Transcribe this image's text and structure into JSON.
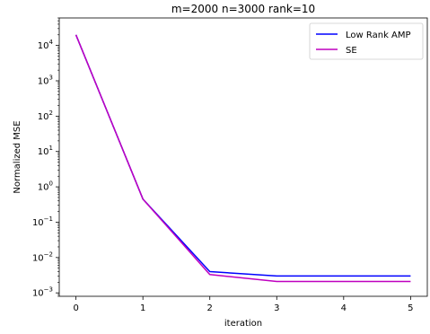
{
  "chart_data": {
    "type": "line",
    "title": "m=2000 n=3000 rank=10",
    "xlabel": "iteration",
    "ylabel": "Normalized MSE",
    "yscale": "log",
    "x": [
      0,
      1,
      2,
      3,
      4,
      5
    ],
    "xlim": [
      -0.25,
      5.25
    ],
    "ylim": [
      0.0008,
      60000
    ],
    "xticks": [
      "0",
      "1",
      "2",
      "3",
      "4",
      "5"
    ],
    "yticks": [
      {
        "value": 0.001,
        "base": "10",
        "exp": "−3"
      },
      {
        "value": 0.01,
        "base": "10",
        "exp": "−2"
      },
      {
        "value": 0.1,
        "base": "10",
        "exp": "−1"
      },
      {
        "value": 1,
        "base": "10",
        "exp": "0"
      },
      {
        "value": 10,
        "base": "10",
        "exp": "1"
      },
      {
        "value": 100,
        "base": "10",
        "exp": "2"
      },
      {
        "value": 1000,
        "base": "10",
        "exp": "3"
      },
      {
        "value": 10000,
        "base": "10",
        "exp": "4"
      }
    ],
    "series": [
      {
        "name": "Low Rank AMP",
        "color": "#0000ff",
        "values": [
          20000,
          0.45,
          0.004,
          0.003,
          0.003,
          0.003
        ]
      },
      {
        "name": "SE",
        "color": "#bf00bf",
        "values": [
          20000,
          0.45,
          0.0033,
          0.0021,
          0.0021,
          0.0021
        ]
      }
    ],
    "legend": "top-right",
    "grid": false
  }
}
